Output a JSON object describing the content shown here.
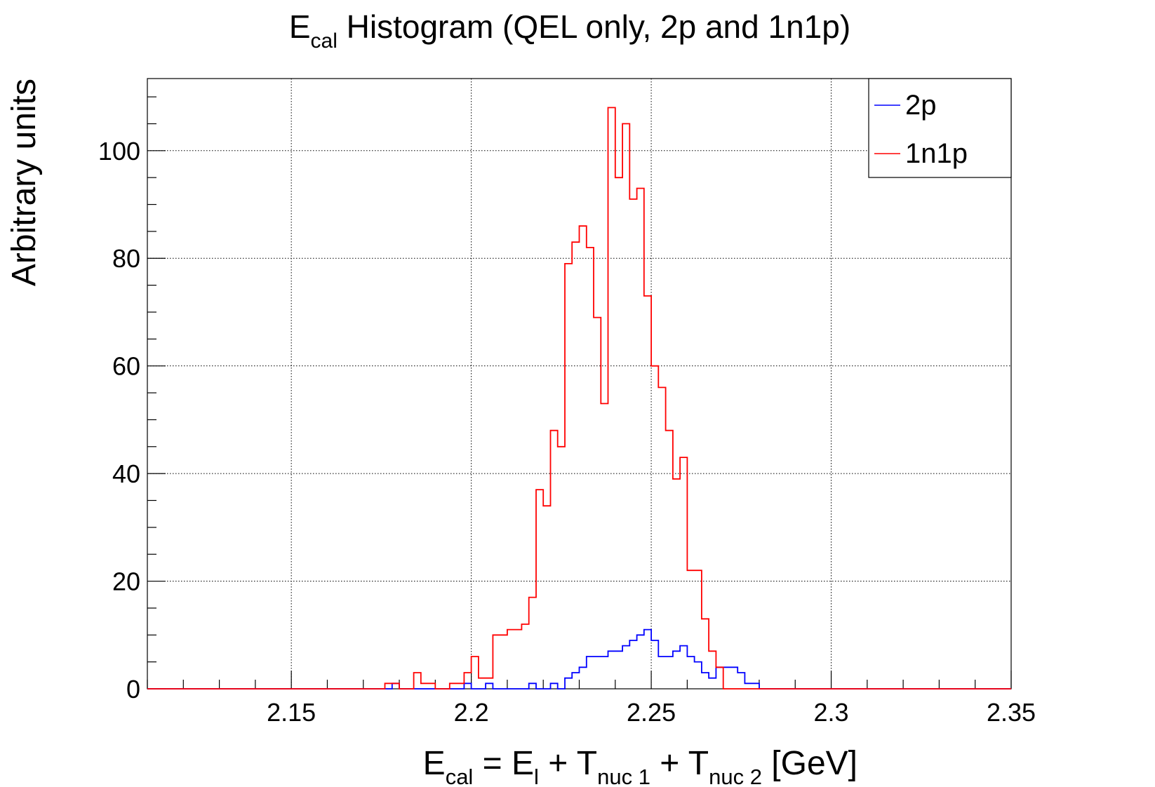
{
  "chart_data": {
    "type": "histogram",
    "title": {
      "main": "E",
      "sub": "cal",
      "rest": " Histogram (QEL only, 2p and 1n1p)"
    },
    "xlabel": {
      "p1": "E",
      "s1": "cal",
      "p2": " = E",
      "s2": "l",
      "p3": " + T",
      "s3": "nuc 1",
      "p4": " + T",
      "s4": "nuc 2",
      "p5": " [GeV]"
    },
    "ylabel": "Arbitrary units",
    "xlim": [
      2.11,
      2.35
    ],
    "ylim": [
      0,
      113.4
    ],
    "x_ticks": [
      {
        "value": 2.15,
        "label": "2.15"
      },
      {
        "value": 2.2,
        "label": "2.2"
      },
      {
        "value": 2.25,
        "label": "2.25"
      },
      {
        "value": 2.3,
        "label": "2.3"
      },
      {
        "value": 2.35,
        "label": "2.35"
      }
    ],
    "y_ticks": [
      {
        "value": 0,
        "label": "0"
      },
      {
        "value": 20,
        "label": "20"
      },
      {
        "value": 40,
        "label": "40"
      },
      {
        "value": 60,
        "label": "60"
      },
      {
        "value": 80,
        "label": "80"
      },
      {
        "value": 100,
        "label": "100"
      }
    ],
    "grid": true,
    "legend_position": "top-right",
    "series": [
      {
        "name": "2p",
        "color": "#0000ff",
        "points": [
          [
            2.11,
            0
          ],
          [
            2.178,
            0
          ],
          [
            2.178,
            1
          ],
          [
            2.18,
            1
          ],
          [
            2.18,
            0
          ],
          [
            2.198,
            0
          ],
          [
            2.198,
            1
          ],
          [
            2.2,
            1
          ],
          [
            2.2,
            0
          ],
          [
            2.204,
            0
          ],
          [
            2.204,
            1
          ],
          [
            2.206,
            1
          ],
          [
            2.206,
            0
          ],
          [
            2.216,
            0
          ],
          [
            2.216,
            1
          ],
          [
            2.218,
            1
          ],
          [
            2.218,
            0
          ],
          [
            2.222,
            0
          ],
          [
            2.222,
            1
          ],
          [
            2.224,
            1
          ],
          [
            2.224,
            0
          ],
          [
            2.226,
            0
          ],
          [
            2.226,
            2
          ],
          [
            2.228,
            2
          ],
          [
            2.228,
            3
          ],
          [
            2.23,
            3
          ],
          [
            2.23,
            4
          ],
          [
            2.232,
            4
          ],
          [
            2.232,
            6
          ],
          [
            2.238,
            6
          ],
          [
            2.238,
            7
          ],
          [
            2.242,
            7
          ],
          [
            2.242,
            8
          ],
          [
            2.244,
            8
          ],
          [
            2.244,
            9
          ],
          [
            2.246,
            9
          ],
          [
            2.246,
            10
          ],
          [
            2.248,
            10
          ],
          [
            2.248,
            11
          ],
          [
            2.25,
            11
          ],
          [
            2.25,
            9
          ],
          [
            2.252,
            9
          ],
          [
            2.252,
            6
          ],
          [
            2.256,
            6
          ],
          [
            2.256,
            7
          ],
          [
            2.258,
            7
          ],
          [
            2.258,
            8
          ],
          [
            2.26,
            8
          ],
          [
            2.26,
            6
          ],
          [
            2.262,
            6
          ],
          [
            2.262,
            5
          ],
          [
            2.264,
            5
          ],
          [
            2.264,
            3
          ],
          [
            2.266,
            3
          ],
          [
            2.266,
            2
          ],
          [
            2.268,
            2
          ],
          [
            2.268,
            4
          ],
          [
            2.274,
            4
          ],
          [
            2.274,
            3
          ],
          [
            2.276,
            3
          ],
          [
            2.276,
            1
          ],
          [
            2.28,
            1
          ],
          [
            2.28,
            0
          ],
          [
            2.35,
            0
          ]
        ]
      },
      {
        "name": "1n1p",
        "color": "#ff0000",
        "points": [
          [
            2.11,
            0
          ],
          [
            2.176,
            0
          ],
          [
            2.176,
            1
          ],
          [
            2.18,
            1
          ],
          [
            2.18,
            0
          ],
          [
            2.184,
            0
          ],
          [
            2.184,
            3
          ],
          [
            2.186,
            3
          ],
          [
            2.186,
            1
          ],
          [
            2.19,
            1
          ],
          [
            2.19,
            0
          ],
          [
            2.194,
            0
          ],
          [
            2.194,
            1
          ],
          [
            2.198,
            1
          ],
          [
            2.198,
            3
          ],
          [
            2.2,
            3
          ],
          [
            2.2,
            6
          ],
          [
            2.202,
            6
          ],
          [
            2.202,
            2
          ],
          [
            2.206,
            2
          ],
          [
            2.206,
            10
          ],
          [
            2.21,
            10
          ],
          [
            2.21,
            11
          ],
          [
            2.214,
            11
          ],
          [
            2.214,
            12
          ],
          [
            2.216,
            12
          ],
          [
            2.216,
            17
          ],
          [
            2.218,
            17
          ],
          [
            2.218,
            37
          ],
          [
            2.22,
            37
          ],
          [
            2.22,
            34
          ],
          [
            2.222,
            34
          ],
          [
            2.222,
            48
          ],
          [
            2.224,
            48
          ],
          [
            2.224,
            45
          ],
          [
            2.226,
            45
          ],
          [
            2.226,
            79
          ],
          [
            2.228,
            79
          ],
          [
            2.228,
            83
          ],
          [
            2.23,
            83
          ],
          [
            2.23,
            86
          ],
          [
            2.232,
            86
          ],
          [
            2.232,
            82
          ],
          [
            2.234,
            82
          ],
          [
            2.234,
            69
          ],
          [
            2.236,
            69
          ],
          [
            2.236,
            53
          ],
          [
            2.238,
            53
          ],
          [
            2.238,
            108
          ],
          [
            2.24,
            108
          ],
          [
            2.24,
            95
          ],
          [
            2.242,
            95
          ],
          [
            2.242,
            105
          ],
          [
            2.244,
            105
          ],
          [
            2.244,
            91
          ],
          [
            2.246,
            91
          ],
          [
            2.246,
            93
          ],
          [
            2.248,
            93
          ],
          [
            2.248,
            73
          ],
          [
            2.25,
            73
          ],
          [
            2.25,
            60
          ],
          [
            2.252,
            60
          ],
          [
            2.252,
            56
          ],
          [
            2.254,
            56
          ],
          [
            2.254,
            48
          ],
          [
            2.256,
            48
          ],
          [
            2.256,
            39
          ],
          [
            2.258,
            39
          ],
          [
            2.258,
            43
          ],
          [
            2.26,
            43
          ],
          [
            2.26,
            22
          ],
          [
            2.264,
            22
          ],
          [
            2.264,
            13
          ],
          [
            2.266,
            13
          ],
          [
            2.266,
            7
          ],
          [
            2.268,
            7
          ],
          [
            2.268,
            4
          ],
          [
            2.27,
            4
          ],
          [
            2.27,
            0
          ],
          [
            2.35,
            0
          ]
        ]
      }
    ]
  }
}
